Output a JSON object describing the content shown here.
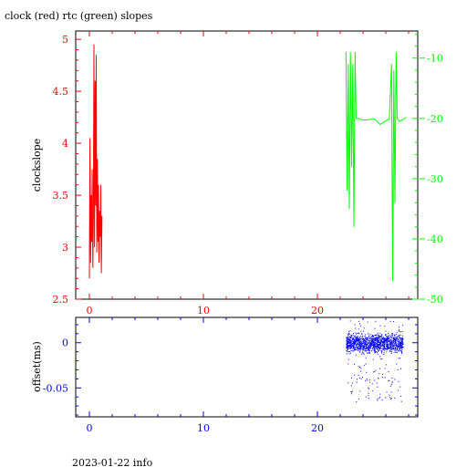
{
  "title": "clock (red) rtc (green) slopes",
  "footer": "2023-01-22 info",
  "colors": {
    "clock": "#ff0000",
    "rtc": "#00ff00",
    "offset": "#0000ff",
    "axis_top_left": "#ff0000",
    "axis_top_right": "#00ff00",
    "axis_bottom": "#0000ff"
  },
  "chart_data": [
    {
      "type": "line",
      "ylabel": "clockslope",
      "xlim": [
        -1.2,
        28.8
      ],
      "ylim": [
        2.5,
        5.08
      ],
      "y2lim": [
        -50,
        -5.5
      ],
      "x_ticks": [
        "0",
        "10",
        "20"
      ],
      "y_ticks": [
        "2.5",
        "3",
        "3.5",
        "4",
        "4.5",
        "5"
      ],
      "y2_ticks": [
        "-50",
        "-40",
        "-30",
        "-20",
        "-10"
      ],
      "series": [
        {
          "axis": "left",
          "color": "#ff0000",
          "x": [
            0.0,
            0.05,
            0.1,
            0.15,
            0.2,
            0.25,
            0.3,
            0.35,
            0.4,
            0.45,
            0.5,
            0.55,
            0.6,
            0.65,
            0.7,
            0.75,
            0.8,
            0.85,
            0.9,
            0.95,
            1.0,
            1.05,
            1.1
          ],
          "y": [
            2.7,
            4.05,
            2.85,
            3.5,
            3.05,
            3.75,
            2.8,
            3.3,
            4.95,
            3.0,
            4.6,
            3.4,
            4.85,
            2.95,
            3.85,
            3.05,
            3.6,
            2.85,
            3.35,
            3.1,
            3.6,
            2.75,
            3.3
          ]
        },
        {
          "axis": "right",
          "color": "#00ff00",
          "x": [
            22.5,
            22.6,
            22.7,
            22.8,
            22.9,
            23.0,
            23.1,
            23.2,
            23.3,
            23.4,
            23.6,
            24.0,
            24.5,
            25.0,
            25.5,
            26.0,
            26.3,
            26.5,
            26.6,
            26.7,
            26.8,
            26.9,
            27.0,
            27.2,
            27.5,
            27.8
          ],
          "y": [
            -9,
            -32,
            -11,
            -35,
            -9,
            -28,
            -11,
            -38,
            -9,
            -20,
            -20,
            -20.3,
            -20.2,
            -20.1,
            -21,
            -20.4,
            -20.1,
            -11,
            -47,
            -12,
            -34,
            -9,
            -20,
            -20.5,
            -20.2,
            -19.8
          ]
        }
      ]
    },
    {
      "type": "scatter",
      "ylabel": "offset(ms)",
      "xlim": [
        -1.2,
        28.8
      ],
      "ylim": [
        -0.082,
        0.028
      ],
      "x_ticks": [
        "0",
        "10",
        "20"
      ],
      "y_ticks": [
        "0",
        "-0.05"
      ],
      "series": [
        {
          "color": "#0000ff",
          "x_range": [
            22.5,
            27.5
          ],
          "y_center": 0.0,
          "y_spread": 0.006,
          "outlier_range": [
            -0.065,
            0.025
          ]
        }
      ]
    }
  ]
}
